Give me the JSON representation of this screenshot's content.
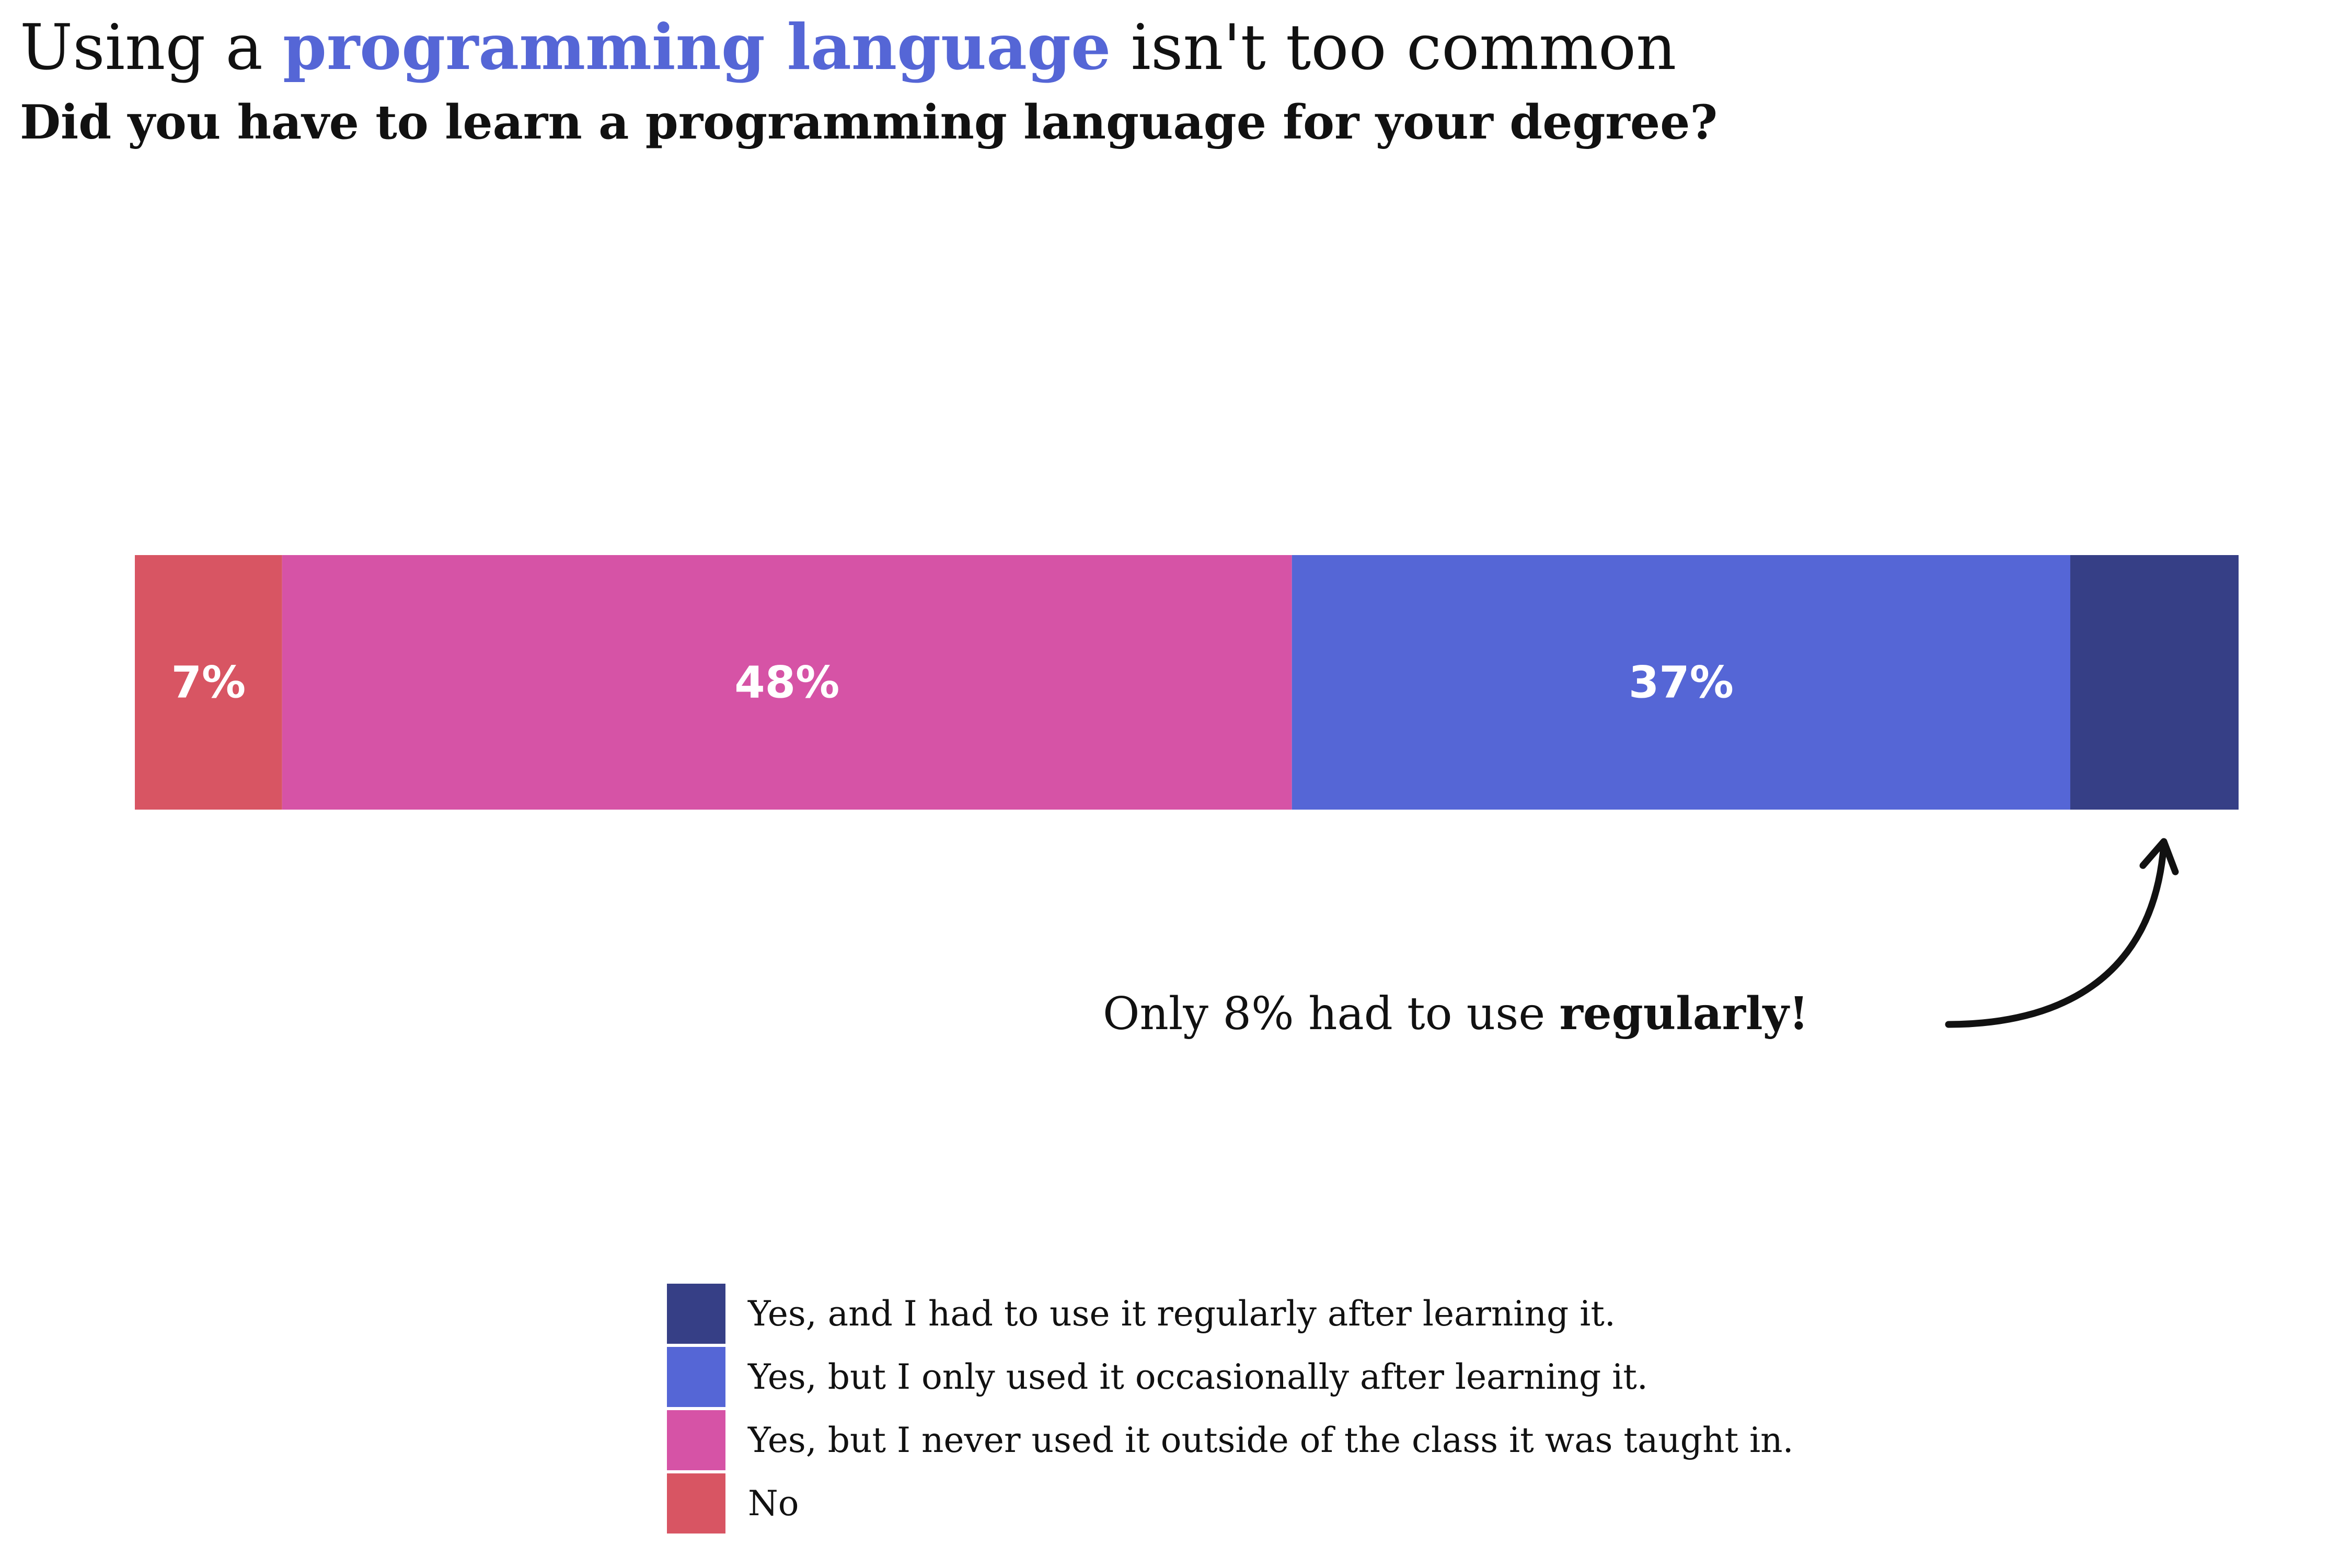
{
  "header": {
    "title_before": "Using a ",
    "title_highlight": "programming language",
    "title_after": " isn't too common",
    "subtitle": "Did you have to learn a programming language for your degree?"
  },
  "annotation": {
    "text_before": "Only 8% had to use ",
    "text_bold": "regularly!"
  },
  "chart_data": {
    "type": "bar",
    "orientation": "horizontal",
    "stacked": true,
    "normalized": true,
    "categories": [
      ""
    ],
    "series": [
      {
        "name": "No",
        "values": [
          7
        ],
        "color": "#d85563",
        "label": "7%"
      },
      {
        "name": "Yes, but I never used it outside of the class it was taught in.",
        "values": [
          48
        ],
        "color": "#d653a6",
        "label": "48%"
      },
      {
        "name": "Yes, but I only used it occasionally after learning it.",
        "values": [
          37
        ],
        "color": "#5566d6",
        "label": "37%"
      },
      {
        "name": "Yes, and I had to use it regularly after learning it.",
        "values": [
          8
        ],
        "color": "#363f86",
        "label": ""
      }
    ],
    "title": "Using a programming language isn't too common",
    "subtitle": "Did you have to learn a programming language for your degree?",
    "xlim": [
      0,
      100
    ],
    "grid": false,
    "legend_position": "bottom",
    "annotations": [
      "Only 8% had to use regularly!"
    ]
  },
  "legend": {
    "items": [
      {
        "label": "Yes, and I had to use it regularly after learning it.",
        "color": "#363f86"
      },
      {
        "label": "Yes, but I only used it occasionally after learning it.",
        "color": "#5566d6"
      },
      {
        "label": "Yes, but I never used it outside of the class it was taught in.",
        "color": "#d653a6"
      },
      {
        "label": "No",
        "color": "#d85563"
      }
    ]
  }
}
